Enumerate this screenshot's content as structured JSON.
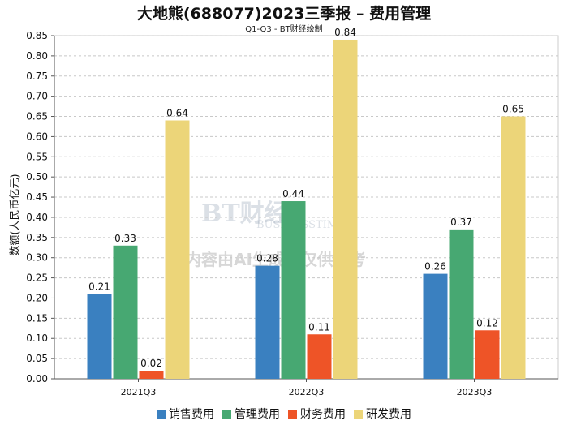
{
  "title": "大地熊(688077)2023三季报 – 费用管理",
  "subtitle": "Q1-Q3 - BT财经绘制",
  "watermark": {
    "logo": "BT财经",
    "logo_sub": "BUSINESSTIMES",
    "notice": "内容由AI生成，仅供参考"
  },
  "chart_data": {
    "type": "bar",
    "title": "大地熊(688077)2023三季报 – 费用管理",
    "subtitle": "Q1-Q3 - BT财经绘制",
    "xlabel": "",
    "ylabel": "数额(人民币亿元)",
    "categories": [
      "2021Q3",
      "2022Q3",
      "2023Q3"
    ],
    "ylim": [
      0,
      0.85
    ],
    "yticks": [
      "0.00",
      "0.05",
      "0.10",
      "0.15",
      "0.20",
      "0.25",
      "0.30",
      "0.35",
      "0.40",
      "0.45",
      "0.50",
      "0.55",
      "0.60",
      "0.65",
      "0.70",
      "0.75",
      "0.80",
      "0.85"
    ],
    "grid": true,
    "legend_position": "bottom",
    "series": [
      {
        "name": "销售费用",
        "color": "#3a80c0",
        "values": [
          0.21,
          0.28,
          0.26
        ],
        "labels": [
          "0.21",
          "0.28",
          "0.26"
        ]
      },
      {
        "name": "管理费用",
        "color": "#47a872",
        "values": [
          0.33,
          0.44,
          0.37
        ],
        "labels": [
          "0.33",
          "0.44",
          "0.37"
        ]
      },
      {
        "name": "财务费用",
        "color": "#ee5427",
        "values": [
          0.02,
          0.11,
          0.12
        ],
        "labels": [
          "0.02",
          "0.11",
          "0.12"
        ]
      },
      {
        "name": "研发费用",
        "color": "#ecd579",
        "values": [
          0.64,
          0.84,
          0.65
        ],
        "labels": [
          "0.64",
          "0.84",
          "0.65"
        ]
      }
    ]
  }
}
